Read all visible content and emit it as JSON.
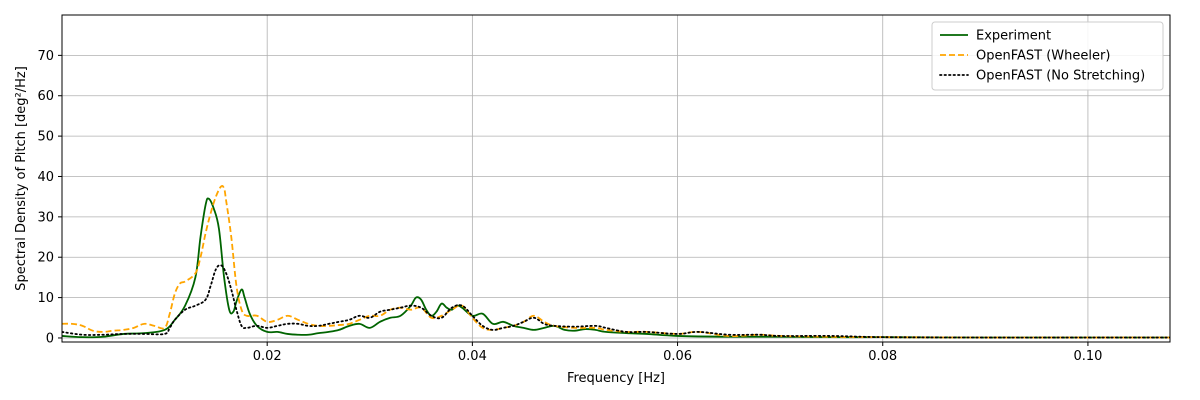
{
  "chart_data": {
    "type": "line",
    "title": "",
    "xlabel": "Frequency [Hz]",
    "ylabel": "Spectral Density of Pitch [deg²/Hz]",
    "xlim": [
      0.0,
      0.108
    ],
    "ylim": [
      -1,
      80
    ],
    "x_ticks": [
      0.02,
      0.04,
      0.06,
      0.08,
      0.1
    ],
    "x_tick_labels": [
      "0.02",
      "0.04",
      "0.06",
      "0.08",
      "0.10"
    ],
    "y_ticks": [
      0,
      10,
      20,
      30,
      40,
      50,
      60,
      70
    ],
    "y_tick_labels": [
      "0",
      "10",
      "20",
      "30",
      "40",
      "50",
      "60",
      "70"
    ],
    "grid": true,
    "legend_position": "top-right",
    "series": [
      {
        "name": "Experiment",
        "color": "#006400",
        "style": "solid",
        "x": [
          0.0,
          0.002,
          0.004,
          0.006,
          0.008,
          0.01,
          0.011,
          0.012,
          0.013,
          0.0135,
          0.014,
          0.0143,
          0.0148,
          0.0153,
          0.0158,
          0.0163,
          0.0167,
          0.017,
          0.0175,
          0.0178,
          0.0183,
          0.019,
          0.02,
          0.021,
          0.022,
          0.023,
          0.024,
          0.025,
          0.026,
          0.027,
          0.028,
          0.029,
          0.03,
          0.031,
          0.032,
          0.033,
          0.034,
          0.0345,
          0.035,
          0.0355,
          0.036,
          0.0365,
          0.037,
          0.0375,
          0.038,
          0.0385,
          0.039,
          0.04,
          0.041,
          0.042,
          0.043,
          0.044,
          0.045,
          0.046,
          0.047,
          0.048,
          0.049,
          0.05,
          0.051,
          0.052,
          0.053,
          0.055,
          0.057,
          0.06,
          0.065,
          0.07,
          0.075,
          0.08,
          0.09,
          0.1,
          0.108
        ],
        "y": [
          0.5,
          0.2,
          0.3,
          1.0,
          1.2,
          2.0,
          4.5,
          8.0,
          15.0,
          25.0,
          33.0,
          34.5,
          32.0,
          27.0,
          15.0,
          7.0,
          6.5,
          9.0,
          12.0,
          10.0,
          6.0,
          3.0,
          1.5,
          1.5,
          1.0,
          0.8,
          0.8,
          1.2,
          1.5,
          2.0,
          3.0,
          3.5,
          2.5,
          4.0,
          5.0,
          5.5,
          8.0,
          10.0,
          9.5,
          7.0,
          5.5,
          6.5,
          8.5,
          7.5,
          7.0,
          8.0,
          7.5,
          5.5,
          6.0,
          3.5,
          4.0,
          3.0,
          2.5,
          2.0,
          2.5,
          3.0,
          2.0,
          1.8,
          2.2,
          2.0,
          1.5,
          1.2,
          1.0,
          0.5,
          0.3,
          0.3,
          0.2,
          0.2,
          0.1,
          0.1,
          0.1
        ]
      },
      {
        "name": "OpenFAST (Wheeler)",
        "color": "#ffa500",
        "style": "dashed",
        "x": [
          0.0,
          0.001,
          0.002,
          0.003,
          0.004,
          0.005,
          0.006,
          0.007,
          0.008,
          0.009,
          0.01,
          0.0105,
          0.011,
          0.0115,
          0.012,
          0.013,
          0.0135,
          0.014,
          0.0145,
          0.015,
          0.0155,
          0.0158,
          0.016,
          0.0165,
          0.017,
          0.0175,
          0.018,
          0.019,
          0.02,
          0.021,
          0.022,
          0.023,
          0.024,
          0.025,
          0.026,
          0.027,
          0.028,
          0.029,
          0.03,
          0.031,
          0.032,
          0.033,
          0.034,
          0.035,
          0.036,
          0.037,
          0.038,
          0.039,
          0.04,
          0.041,
          0.042,
          0.043,
          0.044,
          0.045,
          0.046,
          0.047,
          0.048,
          0.05,
          0.052,
          0.053,
          0.055,
          0.057,
          0.06,
          0.062,
          0.065,
          0.068,
          0.07,
          0.075,
          0.08,
          0.09,
          0.1,
          0.108
        ],
        "y": [
          3.5,
          3.5,
          3.0,
          1.8,
          1.5,
          1.8,
          2.0,
          2.5,
          3.5,
          3.0,
          2.5,
          6.0,
          11.0,
          13.5,
          14.0,
          16.0,
          20.0,
          26.0,
          31.0,
          35.0,
          37.5,
          37.0,
          34.0,
          25.0,
          13.0,
          7.0,
          5.5,
          5.5,
          4.0,
          4.5,
          5.5,
          4.5,
          3.5,
          3.0,
          3.0,
          3.2,
          3.5,
          4.5,
          5.5,
          5.5,
          7.0,
          7.5,
          7.0,
          7.5,
          5.0,
          5.5,
          7.0,
          8.0,
          5.0,
          2.5,
          2.0,
          2.5,
          3.0,
          4.0,
          5.5,
          4.0,
          3.0,
          2.5,
          2.5,
          2.0,
          1.5,
          1.5,
          1.0,
          1.5,
          0.5,
          0.8,
          0.5,
          0.3,
          0.2,
          0.1,
          0.1,
          0.1
        ]
      },
      {
        "name": "OpenFAST (No Stretching)",
        "color": "#000000",
        "style": "dotted",
        "x": [
          0.0,
          0.002,
          0.004,
          0.006,
          0.008,
          0.01,
          0.0105,
          0.011,
          0.012,
          0.013,
          0.014,
          0.0145,
          0.015,
          0.0155,
          0.016,
          0.0165,
          0.017,
          0.0175,
          0.018,
          0.019,
          0.02,
          0.021,
          0.022,
          0.023,
          0.024,
          0.025,
          0.026,
          0.027,
          0.028,
          0.029,
          0.03,
          0.031,
          0.032,
          0.033,
          0.034,
          0.035,
          0.036,
          0.037,
          0.038,
          0.039,
          0.04,
          0.041,
          0.042,
          0.043,
          0.044,
          0.045,
          0.046,
          0.047,
          0.048,
          0.05,
          0.052,
          0.053,
          0.055,
          0.057,
          0.06,
          0.062,
          0.065,
          0.068,
          0.07,
          0.075,
          0.08,
          0.09,
          0.1,
          0.108
        ],
        "y": [
          1.5,
          0.8,
          0.8,
          1.0,
          1.0,
          1.0,
          2.5,
          4.5,
          7.0,
          8.0,
          9.5,
          13.0,
          17.0,
          18.0,
          16.0,
          12.0,
          7.0,
          3.0,
          2.5,
          3.0,
          2.5,
          3.0,
          3.5,
          3.5,
          3.0,
          3.0,
          3.5,
          4.0,
          4.5,
          5.5,
          5.0,
          6.5,
          7.0,
          7.5,
          8.0,
          7.5,
          5.5,
          5.0,
          7.5,
          8.0,
          5.5,
          3.0,
          2.0,
          2.5,
          3.0,
          4.0,
          5.0,
          3.5,
          3.0,
          2.8,
          3.0,
          2.5,
          1.5,
          1.5,
          1.0,
          1.5,
          0.8,
          0.8,
          0.5,
          0.5,
          0.2,
          0.1,
          0.1,
          0.1
        ]
      }
    ]
  }
}
